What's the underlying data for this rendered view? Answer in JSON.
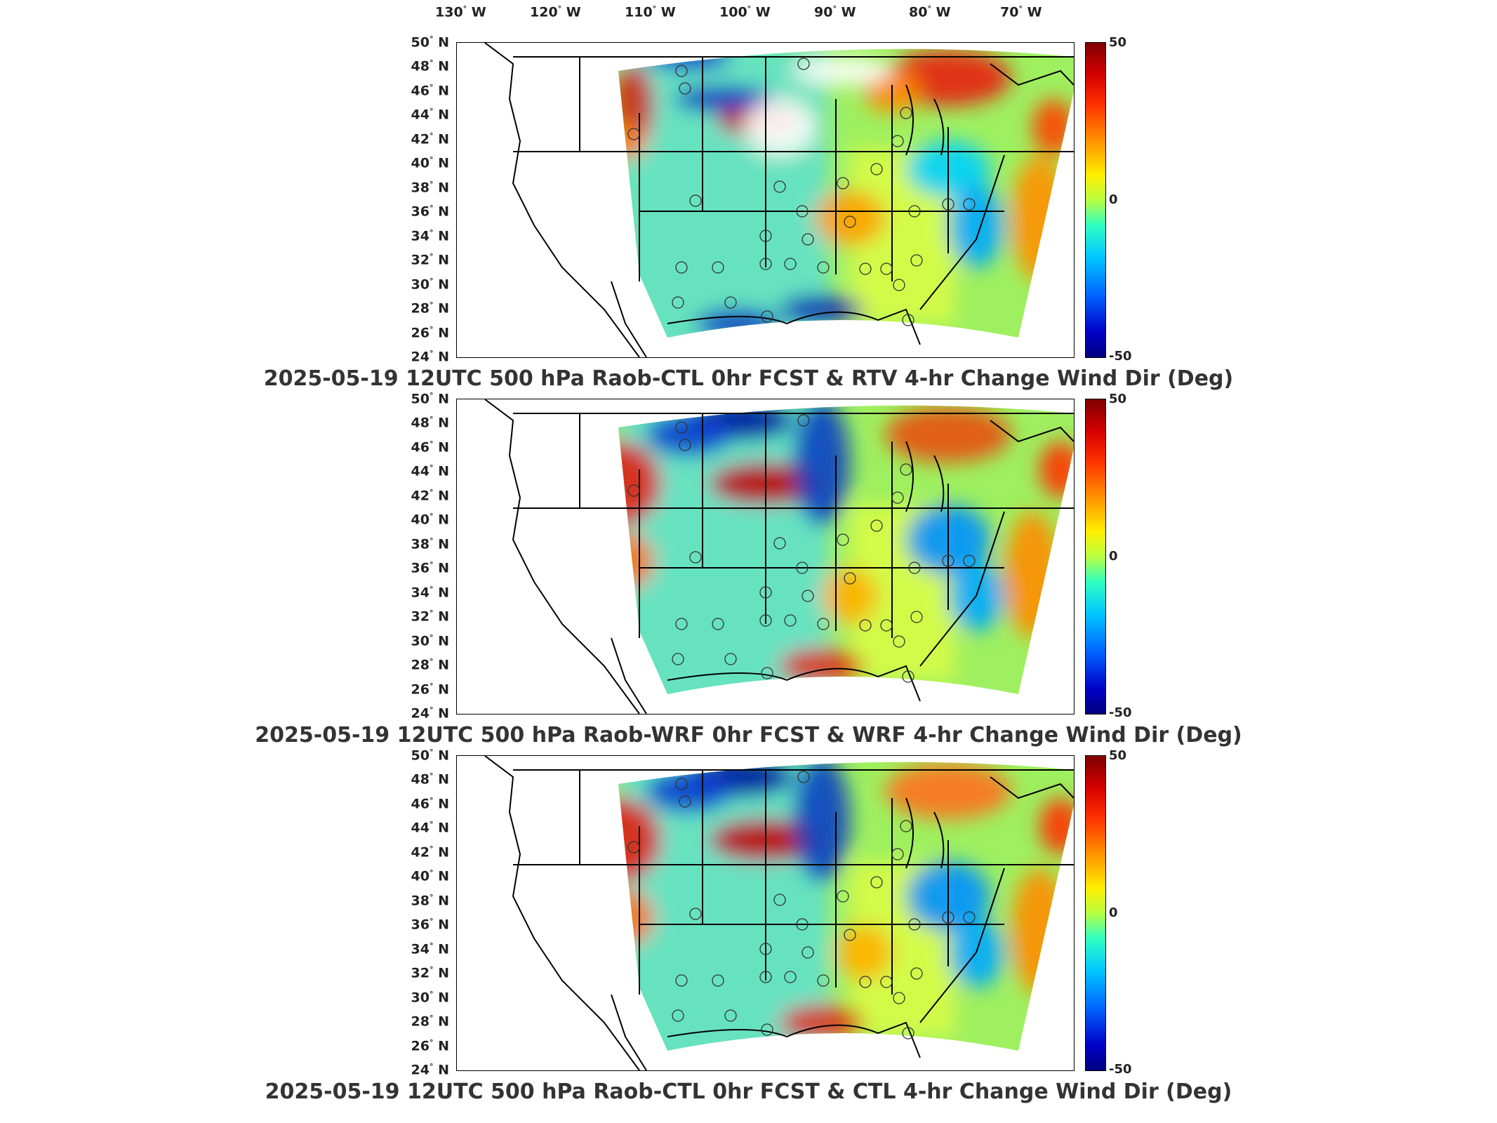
{
  "lon_labels": [
    {
      "deg": "130",
      "hem": "W"
    },
    {
      "deg": "120",
      "hem": "W"
    },
    {
      "deg": "110",
      "hem": "W"
    },
    {
      "deg": "100",
      "hem": "W"
    },
    {
      "deg": "90",
      "hem": "W"
    },
    {
      "deg": "80",
      "hem": "W"
    },
    {
      "deg": "70",
      "hem": "W"
    }
  ],
  "lat_labels": [
    {
      "deg": "50",
      "hem": "N"
    },
    {
      "deg": "48",
      "hem": "N"
    },
    {
      "deg": "46",
      "hem": "N"
    },
    {
      "deg": "44",
      "hem": "N"
    },
    {
      "deg": "42",
      "hem": "N"
    },
    {
      "deg": "40",
      "hem": "N"
    },
    {
      "deg": "38",
      "hem": "N"
    },
    {
      "deg": "36",
      "hem": "N"
    },
    {
      "deg": "34",
      "hem": "N"
    },
    {
      "deg": "32",
      "hem": "N"
    },
    {
      "deg": "30",
      "hem": "N"
    },
    {
      "deg": "28",
      "hem": "N"
    },
    {
      "deg": "26",
      "hem": "N"
    },
    {
      "deg": "24",
      "hem": "N"
    }
  ],
  "colorbar": {
    "max": "50",
    "mid": "0",
    "min": "-50"
  },
  "panels": [
    {
      "caption": "2025-05-19 12UTC 500 hPa Raob-CTL 0hr FCST & RTV 4-hr Change Wind Dir (Deg)"
    },
    {
      "caption": "2025-05-19 12UTC 500 hPa Raob-WRF 0hr FCST & WRF 4-hr Change Wind Dir (Deg)"
    },
    {
      "caption": "2025-05-19 12UTC 500 hPa Raob-CTL 0hr FCST & CTL 4-hr Change Wind Dir (Deg)"
    }
  ],
  "colors": {
    "high": "#7f0000",
    "mid": "#b8ff40",
    "low": "#00007f"
  }
}
